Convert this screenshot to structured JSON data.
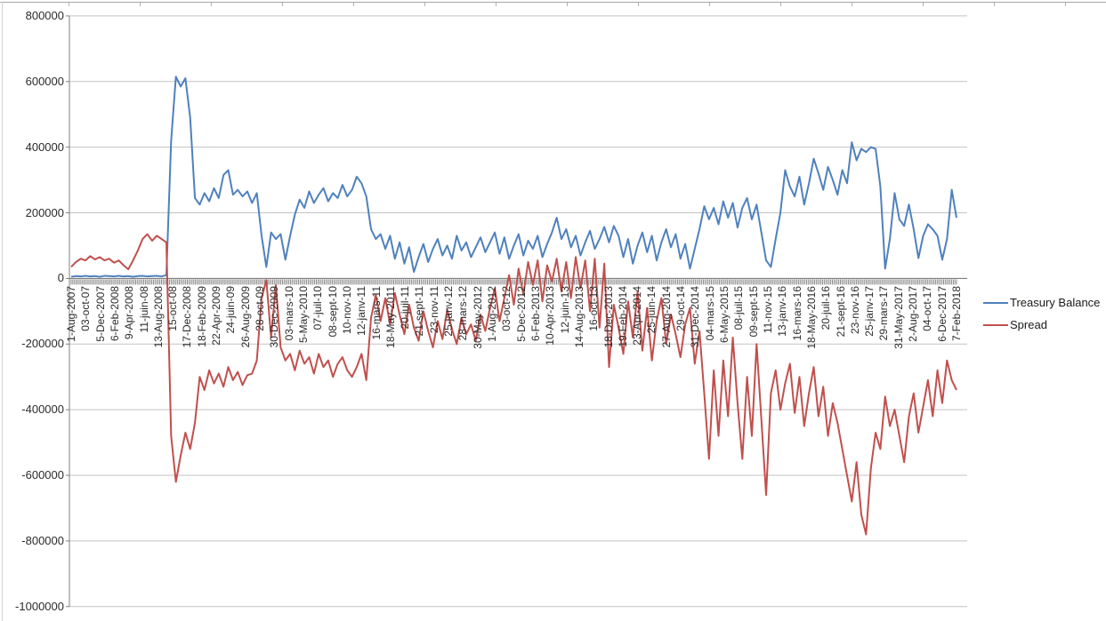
{
  "legend": {
    "items": [
      {
        "label": "Treasury Balance",
        "color": "#4F81BD"
      },
      {
        "label": "Spread",
        "color": "#C0504D"
      }
    ]
  },
  "y_axis": {
    "tick_labels": [
      "800000",
      "600000",
      "400000",
      "200000",
      "0",
      "-200000",
      "-400000",
      "-600000",
      "-800000",
      "-1000000"
    ],
    "max": 800000,
    "min": -1000000,
    "step": 200000
  },
  "x_axis": {
    "first_label": "1-Aug-2007",
    "last_label": "7-Feb-2018",
    "tick_labels": [
      "1-Aug-2007",
      "03-oct-07",
      "5-Dec-2007",
      "6-Feb-2008",
      "9-Apr-2008",
      "11-juin-08",
      "13-Aug-2008",
      "15-oct-08",
      "17-Dec-2008",
      "18-Feb-2009",
      "22-Apr-2009",
      "24-juin-09",
      "26-Aug-2009",
      "28-oct-09",
      "30-Dec-2009",
      "03-mars-10",
      "5-May-2010",
      "07-juil-10",
      "08-sept-10",
      "10-nov-10",
      "12-janv-11",
      "16-mars-11",
      "18-May-2011",
      "20-juil-11",
      "21-sept-11",
      "23-nov-11",
      "25-janv-12",
      "28-mars-12",
      "30-May-2012",
      "1-Aug-2012",
      "03-oct-12",
      "5-Dec-2012",
      "6-Feb-2013",
      "10-Apr-2013",
      "12-juin-13",
      "14-Aug-2013",
      "16-oct-13",
      "18-Dec-2013",
      "19-Feb-2014",
      "23-Apr-2014",
      "25-juin-14",
      "27-Aug-2014",
      "29-oct-14",
      "31-Dec-2014",
      "04-mars-15",
      "6-May-2015",
      "08-juil-15",
      "09-sept-15",
      "11-nov-15",
      "13-janv-16",
      "16-mars-16",
      "18-May-2016",
      "20-juil-16",
      "21-sept-16",
      "23-nov-16",
      "25-janv-17",
      "29-mars-17",
      "31-May-2017",
      "2-Aug-2017",
      "04-oct-17",
      "6-Dec-2017",
      "7-Feb-2018"
    ]
  },
  "chart_data": {
    "type": "line",
    "title": "",
    "xlabel": "",
    "ylabel": "",
    "ylim": [
      -1000000,
      800000
    ],
    "y_step": 200000,
    "grid": "horizontal",
    "legend_position": "right",
    "x_range": [
      "1-Aug-2007",
      "7-Feb-2018"
    ],
    "x_tick_labels": [
      "1-Aug-2007",
      "03-oct-07",
      "5-Dec-2007",
      "6-Feb-2008",
      "9-Apr-2008",
      "11-juin-08",
      "13-Aug-2008",
      "15-oct-08",
      "17-Dec-2008",
      "18-Feb-2009",
      "22-Apr-2009",
      "24-juin-09",
      "26-Aug-2009",
      "28-oct-09",
      "30-Dec-2009",
      "03-mars-10",
      "5-May-2010",
      "07-juil-10",
      "08-sept-10",
      "10-nov-10",
      "12-janv-11",
      "16-mars-11",
      "18-May-2011",
      "20-juil-11",
      "21-sept-11",
      "23-nov-11",
      "25-janv-12",
      "28-mars-12",
      "30-May-2012",
      "1-Aug-2012",
      "03-oct-12",
      "5-Dec-2012",
      "6-Feb-2013",
      "10-Apr-2013",
      "12-juin-13",
      "14-Aug-2013",
      "16-oct-13",
      "18-Dec-2013",
      "19-Feb-2014",
      "23-Apr-2014",
      "25-juin-14",
      "27-Aug-2014",
      "29-oct-14",
      "31-Dec-2014",
      "04-mars-15",
      "6-May-2015",
      "08-juil-15",
      "09-sept-15",
      "11-nov-15",
      "13-janv-16",
      "16-mars-16",
      "18-May-2016",
      "20-juil-16",
      "21-sept-16",
      "23-nov-16",
      "25-janv-17",
      "29-mars-17",
      "31-May-2017",
      "2-Aug-2017",
      "04-oct-17",
      "6-Dec-2017",
      "7-Feb-2018"
    ],
    "series": [
      {
        "name": "Treasury Balance",
        "color": "#4F81BD",
        "values": [
          5000,
          7000,
          6000,
          8000,
          6000,
          7000,
          5000,
          8000,
          7000,
          6000,
          8000,
          6000,
          7000,
          5000,
          7000,
          8000,
          6000,
          7000,
          8000,
          6000,
          10000,
          420000,
          615000,
          585000,
          610000,
          490000,
          245000,
          225000,
          260000,
          235000,
          275000,
          245000,
          315000,
          330000,
          255000,
          270000,
          250000,
          265000,
          230000,
          260000,
          130000,
          35000,
          140000,
          120000,
          135000,
          57000,
          130000,
          195000,
          240000,
          215000,
          265000,
          230000,
          255000,
          275000,
          235000,
          260000,
          245000,
          285000,
          250000,
          270000,
          310000,
          290000,
          250000,
          150000,
          120000,
          135000,
          90000,
          130000,
          60000,
          110000,
          45000,
          95000,
          20000,
          65000,
          105000,
          50000,
          90000,
          120000,
          70000,
          100000,
          60000,
          130000,
          85000,
          110000,
          65000,
          95000,
          125000,
          80000,
          110000,
          140000,
          75000,
          125000,
          60000,
          100000,
          135000,
          70000,
          115000,
          90000,
          130000,
          65000,
          105000,
          140000,
          185000,
          120000,
          150000,
          95000,
          130000,
          70000,
          110000,
          145000,
          90000,
          120000,
          157000,
          110000,
          160000,
          130000,
          65000,
          120000,
          45000,
          100000,
          140000,
          80000,
          130000,
          55000,
          110000,
          150000,
          95000,
          135000,
          60000,
          105000,
          30000,
          90000,
          150000,
          220000,
          180000,
          215000,
          165000,
          235000,
          185000,
          230000,
          155000,
          215000,
          245000,
          180000,
          225000,
          140000,
          55000,
          35000,
          120000,
          200000,
          330000,
          280000,
          250000,
          310000,
          225000,
          290000,
          365000,
          320000,
          270000,
          340000,
          300000,
          255000,
          330000,
          290000,
          415000,
          360000,
          395000,
          385000,
          400000,
          395000,
          280000,
          30000,
          120000,
          260000,
          180000,
          160000,
          225000,
          150000,
          62000,
          130000,
          165000,
          150000,
          130000,
          57000,
          120000,
          270000,
          185000
        ]
      },
      {
        "name": "Spread",
        "color": "#C0504D",
        "values": [
          35000,
          50000,
          60000,
          55000,
          68000,
          58000,
          65000,
          55000,
          60000,
          48000,
          55000,
          40000,
          28000,
          55000,
          85000,
          120000,
          135000,
          115000,
          130000,
          120000,
          110000,
          -480000,
          -620000,
          -540000,
          -470000,
          -520000,
          -440000,
          -300000,
          -340000,
          -280000,
          -320000,
          -290000,
          -330000,
          -270000,
          -310000,
          -285000,
          -325000,
          -295000,
          -290000,
          -250000,
          -60000,
          -5000,
          -180000,
          -20000,
          -210000,
          -250000,
          -230000,
          -280000,
          -220000,
          -260000,
          -240000,
          -290000,
          -230000,
          -270000,
          -250000,
          -300000,
          -260000,
          -240000,
          -280000,
          -300000,
          -270000,
          -230000,
          -310000,
          -120000,
          -50000,
          -130000,
          -60000,
          -140000,
          -45000,
          -110000,
          -170000,
          -80000,
          -150000,
          -190000,
          -100000,
          -160000,
          -210000,
          -130000,
          -185000,
          -95000,
          -155000,
          -200000,
          -120000,
          -170000,
          -140000,
          -190000,
          -110000,
          -160000,
          -90000,
          -30000,
          -130000,
          -60000,
          10000,
          -80000,
          30000,
          -50000,
          50000,
          -20000,
          55000,
          -70000,
          40000,
          -10000,
          60000,
          -40000,
          50000,
          -60000,
          65000,
          -30000,
          55000,
          -100000,
          60000,
          -150000,
          45000,
          -270000,
          -80000,
          -150000,
          -230000,
          -70000,
          -180000,
          -40000,
          -220000,
          -90000,
          -250000,
          -130000,
          -60000,
          -200000,
          -110000,
          -170000,
          -240000,
          -140000,
          -90000,
          -260000,
          -160000,
          -350000,
          -550000,
          -280000,
          -480000,
          -250000,
          -420000,
          -180000,
          -380000,
          -550000,
          -300000,
          -480000,
          -200000,
          -430000,
          -660000,
          -350000,
          -280000,
          -400000,
          -320000,
          -260000,
          -410000,
          -300000,
          -450000,
          -350000,
          -270000,
          -420000,
          -330000,
          -480000,
          -380000,
          -440000,
          -520000,
          -600000,
          -680000,
          -560000,
          -720000,
          -780000,
          -580000,
          -470000,
          -520000,
          -360000,
          -450000,
          -400000,
          -480000,
          -560000,
          -420000,
          -350000,
          -470000,
          -390000,
          -310000,
          -420000,
          -280000,
          -380000,
          -250000,
          -310000,
          -340000
        ]
      }
    ]
  }
}
